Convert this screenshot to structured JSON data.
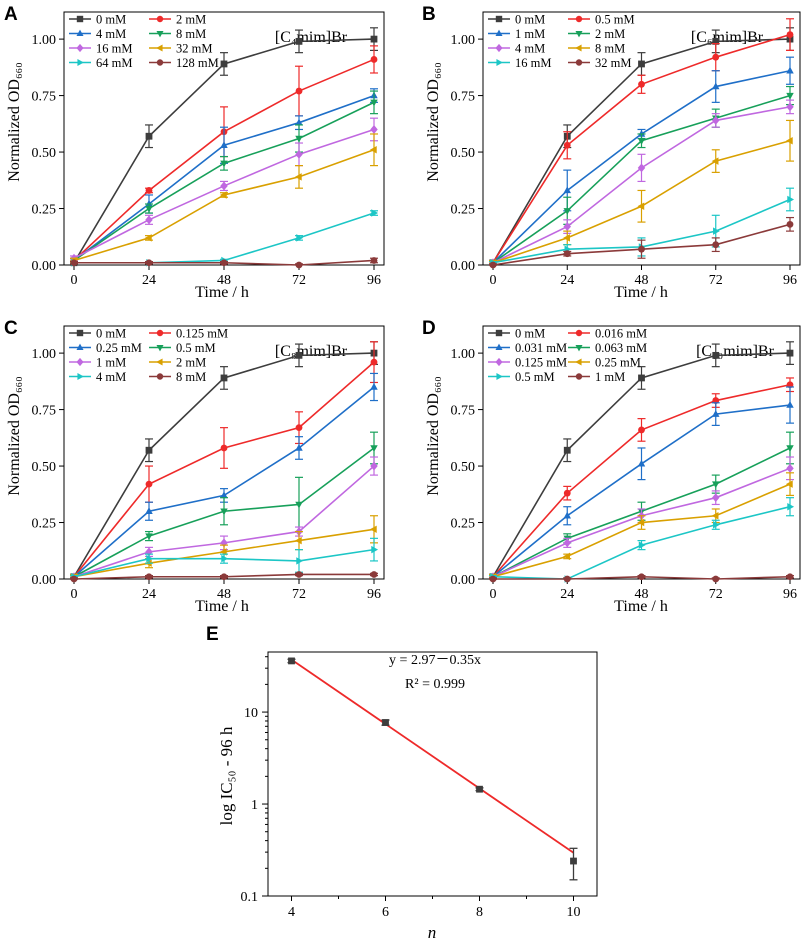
{
  "chart_data": [
    {
      "panel": "A",
      "type": "line",
      "title": "[C₄mim]Br",
      "xlabel": "Time / h",
      "ylabel": "Normalized OD₆₆₀",
      "x": [
        0,
        24,
        48,
        72,
        96
      ],
      "xticks": [
        "0",
        "24",
        "48",
        "72",
        "96"
      ],
      "xlim": [
        0,
        96
      ],
      "ylim": [
        0,
        1.12
      ],
      "yticks": [
        "0.00",
        "0.25",
        "0.50",
        "0.75",
        "1.00"
      ],
      "ytick_values": [
        0,
        0.25,
        0.5,
        0.75,
        1.0
      ],
      "legend_position": "top-left",
      "series": [
        {
          "name": "0 mM",
          "color": "#3d3d3d",
          "marker": "square",
          "values": [
            0.01,
            0.57,
            0.89,
            0.99,
            1.0
          ],
          "errors": [
            0.01,
            0.05,
            0.05,
            0.05,
            0.05
          ]
        },
        {
          "name": "2 mM",
          "color": "#ee2a2a",
          "marker": "circle",
          "values": [
            0.02,
            0.33,
            0.59,
            0.77,
            0.91
          ],
          "errors": [
            0.01,
            0.01,
            0.11,
            0.11,
            0.06
          ]
        },
        {
          "name": "4 mM",
          "color": "#1f6fc8",
          "marker": "triangle-up",
          "values": [
            0.02,
            0.27,
            0.53,
            0.63,
            0.75
          ],
          "errors": [
            0.01,
            0.04,
            0.08,
            0.03,
            0.03
          ]
        },
        {
          "name": "8 mM",
          "color": "#17a05a",
          "marker": "triangle-down",
          "values": [
            0.02,
            0.25,
            0.45,
            0.56,
            0.72
          ],
          "errors": [
            0.01,
            0.02,
            0.03,
            0.06,
            0.05
          ]
        },
        {
          "name": "16 mM",
          "color": "#c068e0",
          "marker": "diamond",
          "values": [
            0.03,
            0.2,
            0.35,
            0.49,
            0.6
          ],
          "errors": [
            0.01,
            0.02,
            0.02,
            0.05,
            0.05
          ]
        },
        {
          "name": "32 mM",
          "color": "#d9a000",
          "marker": "triangle-left",
          "values": [
            0.02,
            0.12,
            0.31,
            0.39,
            0.51
          ],
          "errors": [
            0.01,
            0.01,
            0.01,
            0.05,
            0.07
          ]
        },
        {
          "name": "64 mM",
          "color": "#1cc6c6",
          "marker": "triangle-right",
          "values": [
            0.01,
            0.01,
            0.02,
            0.12,
            0.23
          ],
          "errors": [
            0.005,
            0.005,
            0.005,
            0.01,
            0.01
          ]
        },
        {
          "name": "128 mM",
          "color": "#8b3a3a",
          "marker": "hexagon",
          "values": [
            0.01,
            0.01,
            0.01,
            0.0,
            0.02
          ],
          "errors": [
            0.005,
            0.005,
            0.005,
            0.005,
            0.01
          ]
        }
      ]
    },
    {
      "panel": "B",
      "type": "line",
      "title": "[C₆mim]Br",
      "xlabel": "Time / h",
      "ylabel": "Normalized OD₆₆₀",
      "x": [
        0,
        24,
        48,
        72,
        96
      ],
      "xticks": [
        "0",
        "24",
        "48",
        "72",
        "96"
      ],
      "xlim": [
        0,
        96
      ],
      "ylim": [
        0,
        1.12
      ],
      "yticks": [
        "0.00",
        "0.25",
        "0.50",
        "0.75",
        "1.00"
      ],
      "ytick_values": [
        0,
        0.25,
        0.5,
        0.75,
        1.0
      ],
      "legend_position": "top-left",
      "series": [
        {
          "name": "0 mM",
          "color": "#3d3d3d",
          "marker": "square",
          "values": [
            0.01,
            0.57,
            0.89,
            0.99,
            1.0
          ],
          "errors": [
            0.01,
            0.05,
            0.05,
            0.05,
            0.05
          ]
        },
        {
          "name": "0.5 mM",
          "color": "#ee2a2a",
          "marker": "circle",
          "values": [
            0.01,
            0.53,
            0.8,
            0.92,
            1.02
          ],
          "errors": [
            0.01,
            0.06,
            0.04,
            0.06,
            0.07
          ]
        },
        {
          "name": "1 mM",
          "color": "#1f6fc8",
          "marker": "triangle-up",
          "values": [
            0.01,
            0.33,
            0.58,
            0.79,
            0.86
          ],
          "errors": [
            0.01,
            0.09,
            0.02,
            0.07,
            0.06
          ]
        },
        {
          "name": "2 mM",
          "color": "#17a05a",
          "marker": "triangle-down",
          "values": [
            0.01,
            0.24,
            0.55,
            0.65,
            0.75
          ],
          "errors": [
            0.01,
            0.06,
            0.03,
            0.04,
            0.04
          ]
        },
        {
          "name": "4 mM",
          "color": "#c068e0",
          "marker": "diamond",
          "values": [
            0.01,
            0.17,
            0.43,
            0.64,
            0.7
          ],
          "errors": [
            0.01,
            0.03,
            0.06,
            0.03,
            0.03
          ]
        },
        {
          "name": "8 mM",
          "color": "#d9a000",
          "marker": "triangle-left",
          "values": [
            0.01,
            0.12,
            0.26,
            0.46,
            0.55
          ],
          "errors": [
            0.01,
            0.03,
            0.07,
            0.05,
            0.09
          ]
        },
        {
          "name": "16 mM",
          "color": "#1cc6c6",
          "marker": "triangle-right",
          "values": [
            0.01,
            0.07,
            0.08,
            0.15,
            0.29
          ],
          "errors": [
            0.005,
            0.02,
            0.04,
            0.07,
            0.05
          ]
        },
        {
          "name": "32 mM",
          "color": "#8b3a3a",
          "marker": "hexagon",
          "values": [
            0.0,
            0.05,
            0.07,
            0.09,
            0.18
          ],
          "errors": [
            0.005,
            0.01,
            0.04,
            0.03,
            0.03
          ]
        }
      ]
    },
    {
      "panel": "C",
      "type": "line",
      "title": "[C₈mim]Br",
      "xlabel": "Time / h",
      "ylabel": "Normalized OD₆₆₀",
      "x": [
        0,
        24,
        48,
        72,
        96
      ],
      "xticks": [
        "0",
        "24",
        "48",
        "72",
        "96"
      ],
      "xlim": [
        0,
        96
      ],
      "ylim": [
        0,
        1.12
      ],
      "yticks": [
        "0.00",
        "0.25",
        "0.50",
        "0.75",
        "1.00"
      ],
      "ytick_values": [
        0,
        0.25,
        0.5,
        0.75,
        1.0
      ],
      "legend_position": "top-left",
      "series": [
        {
          "name": "0 mM",
          "color": "#3d3d3d",
          "marker": "square",
          "values": [
            0.01,
            0.57,
            0.89,
            0.99,
            1.0
          ],
          "errors": [
            0.01,
            0.05,
            0.05,
            0.05,
            0.05
          ]
        },
        {
          "name": "0.125 mM",
          "color": "#ee2a2a",
          "marker": "circle",
          "values": [
            0.01,
            0.42,
            0.58,
            0.67,
            0.96
          ],
          "errors": [
            0.01,
            0.08,
            0.09,
            0.07,
            0.09
          ]
        },
        {
          "name": "0.25 mM",
          "color": "#1f6fc8",
          "marker": "triangle-up",
          "values": [
            0.01,
            0.3,
            0.37,
            0.58,
            0.85
          ],
          "errors": [
            0.01,
            0.04,
            0.03,
            0.05,
            0.06
          ]
        },
        {
          "name": "0.5 mM",
          "color": "#17a05a",
          "marker": "triangle-down",
          "values": [
            0.01,
            0.19,
            0.3,
            0.33,
            0.58
          ],
          "errors": [
            0.01,
            0.02,
            0.06,
            0.12,
            0.07
          ]
        },
        {
          "name": "1 mM",
          "color": "#c068e0",
          "marker": "diamond",
          "values": [
            0.01,
            0.12,
            0.16,
            0.21,
            0.5
          ],
          "errors": [
            0.01,
            0.02,
            0.03,
            0.02,
            0.04
          ]
        },
        {
          "name": "2 mM",
          "color": "#d9a000",
          "marker": "triangle-left",
          "values": [
            0.01,
            0.07,
            0.12,
            0.17,
            0.22
          ],
          "errors": [
            0.01,
            0.02,
            0.03,
            0.04,
            0.06
          ]
        },
        {
          "name": "4 mM",
          "color": "#1cc6c6",
          "marker": "triangle-right",
          "values": [
            0.01,
            0.09,
            0.09,
            0.08,
            0.13
          ],
          "errors": [
            0.005,
            0.02,
            0.02,
            0.05,
            0.05
          ]
        },
        {
          "name": "8 mM",
          "color": "#8b3a3a",
          "marker": "hexagon",
          "values": [
            0.0,
            0.01,
            0.01,
            0.02,
            0.02
          ],
          "errors": [
            0.005,
            0.005,
            0.005,
            0.005,
            0.005
          ]
        }
      ]
    },
    {
      "panel": "D",
      "type": "line",
      "title": "[C₁₀mim]Br",
      "xlabel": "Time / h",
      "ylabel": "Normalized OD₆₆₀",
      "x": [
        0,
        24,
        48,
        72,
        96
      ],
      "xticks": [
        "0",
        "24",
        "48",
        "72",
        "96"
      ],
      "xlim": [
        0,
        96
      ],
      "ylim": [
        0,
        1.12
      ],
      "yticks": [
        "0.00",
        "0.25",
        "0.50",
        "0.75",
        "1.00"
      ],
      "ytick_values": [
        0,
        0.25,
        0.5,
        0.75,
        1.0
      ],
      "legend_position": "top-left",
      "series": [
        {
          "name": "0 mM",
          "color": "#3d3d3d",
          "marker": "square",
          "values": [
            0.01,
            0.57,
            0.89,
            0.99,
            1.0
          ],
          "errors": [
            0.01,
            0.05,
            0.05,
            0.05,
            0.05
          ]
        },
        {
          "name": "0.016 mM",
          "color": "#ee2a2a",
          "marker": "circle",
          "values": [
            0.01,
            0.38,
            0.66,
            0.79,
            0.86
          ],
          "errors": [
            0.01,
            0.03,
            0.05,
            0.03,
            0.03
          ]
        },
        {
          "name": "0.031 mM",
          "color": "#1f6fc8",
          "marker": "triangle-up",
          "values": [
            0.01,
            0.28,
            0.51,
            0.73,
            0.77
          ],
          "errors": [
            0.01,
            0.04,
            0.07,
            0.05,
            0.08
          ]
        },
        {
          "name": "0.063 mM",
          "color": "#17a05a",
          "marker": "triangle-down",
          "values": [
            0.01,
            0.18,
            0.3,
            0.42,
            0.58
          ],
          "errors": [
            0.01,
            0.02,
            0.04,
            0.04,
            0.07
          ]
        },
        {
          "name": "0.125 mM",
          "color": "#c068e0",
          "marker": "diamond",
          "values": [
            0.01,
            0.16,
            0.28,
            0.36,
            0.49
          ],
          "errors": [
            0.01,
            0.02,
            0.03,
            0.03,
            0.05
          ]
        },
        {
          "name": "0.25 mM",
          "color": "#d9a000",
          "marker": "triangle-left",
          "values": [
            0.01,
            0.1,
            0.25,
            0.28,
            0.42
          ],
          "errors": [
            0.01,
            0.01,
            0.03,
            0.03,
            0.05
          ]
        },
        {
          "name": "0.5 mM",
          "color": "#1cc6c6",
          "marker": "triangle-right",
          "values": [
            0.01,
            0.0,
            0.15,
            0.24,
            0.32
          ],
          "errors": [
            0.005,
            0.005,
            0.02,
            0.02,
            0.04
          ]
        },
        {
          "name": "1 mM",
          "color": "#8b3a3a",
          "marker": "hexagon",
          "values": [
            0.0,
            0.0,
            0.01,
            0.0,
            0.01
          ],
          "errors": [
            0.005,
            0.005,
            0.005,
            0.005,
            0.005
          ]
        }
      ]
    },
    {
      "panel": "E",
      "type": "scatter",
      "xlabel": "n",
      "ylabel": "log IC₅₀ - 96 h",
      "x": [
        4,
        6,
        8,
        10
      ],
      "values": [
        36,
        7.7,
        1.45,
        0.24
      ],
      "errors_low": [
        34.5,
        7.2,
        1.4,
        0.15
      ],
      "errors_high": [
        37.5,
        8.2,
        1.5,
        0.33
      ],
      "xlim": [
        3.5,
        10.5
      ],
      "xticks": [
        "4",
        "6",
        "8",
        "10"
      ],
      "xtick_values": [
        4,
        6,
        8,
        10
      ],
      "yscale": "log",
      "ylim": [
        0.1,
        45
      ],
      "yticks": [
        "0.1",
        "1",
        "10"
      ],
      "ytick_values": [
        0.1,
        1,
        10
      ],
      "point_color": "#3d3d3d",
      "fit_color": "#ee2a2a",
      "fit": {
        "intercept": 2.97,
        "slope": -0.35
      },
      "annotation_equation": "y = 2.97－0.35x",
      "annotation_r2": "R² = 0.999"
    }
  ]
}
